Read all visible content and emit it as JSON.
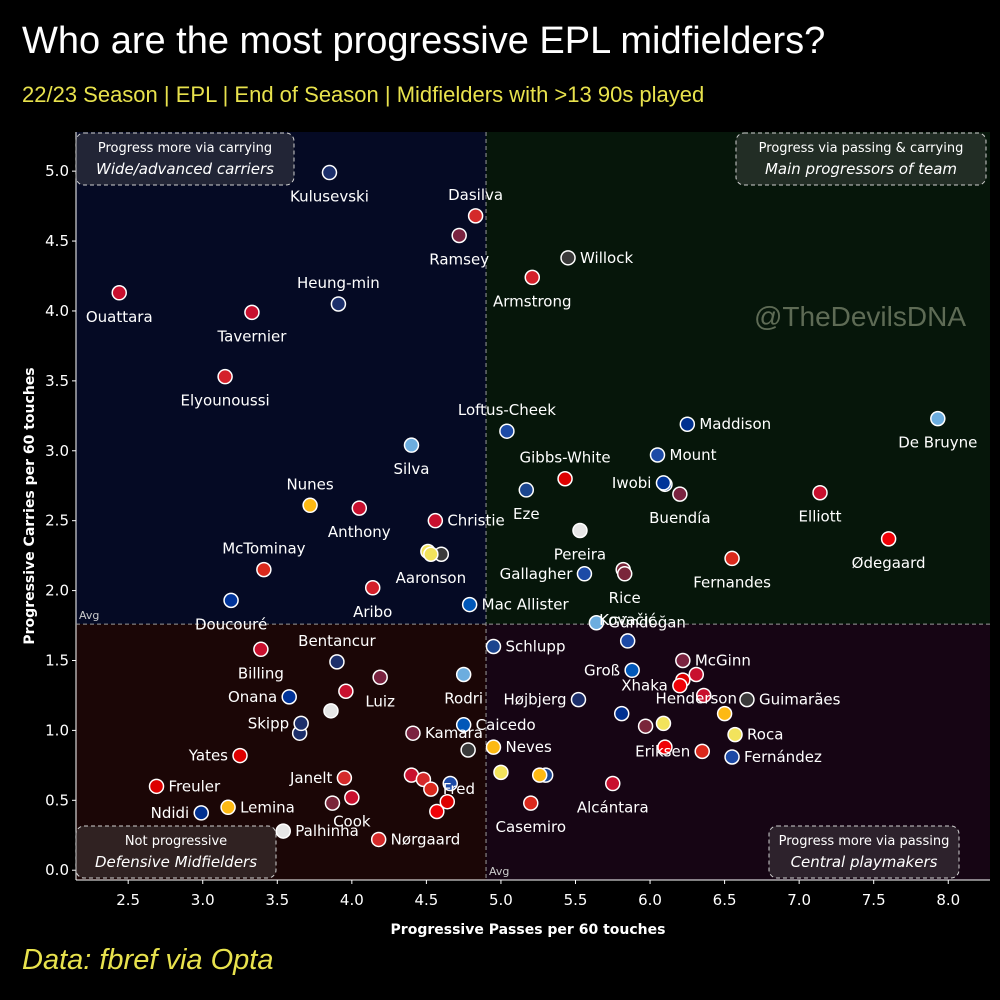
{
  "header": {
    "title": "Who are the most progressive EPL midfielders?",
    "subtitle": "22/23 Season | EPL | End of Season | Midfielders with >13 90s played"
  },
  "footer": {
    "source": "Data: fbref via Opta"
  },
  "watermark": "@TheDevilsDNA",
  "avg_label": "Avg",
  "quadrants": [
    {
      "id": "top-left",
      "title": "Progress more via carrying",
      "subtitle": "Wide/advanced carriers",
      "color": "#050a24"
    },
    {
      "id": "top-right",
      "title": "Progress via passing & carrying",
      "subtitle": "Main progressors of team",
      "color": "#06160a"
    },
    {
      "id": "bottom-left",
      "title": "Not progressive",
      "subtitle": "Defensive Midfielders",
      "color": "#1b0606"
    },
    {
      "id": "bottom-right",
      "title": "Progress more via passing",
      "subtitle": "Central playmakers",
      "color": "#160514"
    }
  ],
  "club_colors": {
    "TOT": "#1c2f6b",
    "BRE": "#d42a2a",
    "AVL": "#7a2340",
    "NEW": "#3a3a3a",
    "SOU": "#d4202a",
    "BOU": "#c8102e",
    "CHE": "#1d4aa6",
    "LIV": "#c8102e",
    "NFO": "#dd0000",
    "MCI": "#6caddf",
    "CRY": "#1b458f",
    "EVE": "#003399",
    "LEI": "#003090",
    "WOL": "#fdb913",
    "ARS": "#ef0107",
    "BHA": "#0057b8",
    "FUL": "#e6e6e6",
    "MUN": "#da291c",
    "WHU": "#7a263a",
    "LEE": "#f2e35c"
  },
  "chart_data": {
    "type": "scatter",
    "title": "Who are the most progressive EPL midfielders?",
    "xlabel": "Progressive Passes per 60 touches",
    "ylabel": "Progressive Carries per 60 touches",
    "xlim": [
      2.15,
      8.28
    ],
    "ylim": [
      -0.07,
      5.28
    ],
    "xticks": [
      2.5,
      3.0,
      3.5,
      4.0,
      4.5,
      5.0,
      5.5,
      6.0,
      6.5,
      7.0,
      7.5,
      8.0
    ],
    "xtick_labels": [
      "2.5",
      "3.0",
      "3.5",
      "4.0",
      "4.5",
      "5.0",
      "5.5",
      "6.0",
      "6.5",
      "7.0",
      "7.5",
      "8.0"
    ],
    "yticks": [
      0.0,
      0.5,
      1.0,
      1.5,
      2.0,
      2.5,
      3.0,
      3.5,
      4.0,
      4.5,
      5.0
    ],
    "ytick_labels": [
      "0.0",
      "0.5",
      "1.0",
      "1.5",
      "2.0",
      "2.5",
      "3.0",
      "3.5",
      "4.0",
      "4.5",
      "5.0"
    ],
    "avg_x": 4.9,
    "avg_y": 1.76,
    "points": [
      {
        "name": "Kulusevski",
        "club": "TOT",
        "x": 3.85,
        "y": 4.99,
        "label_pos": "below"
      },
      {
        "name": "Dasilva",
        "club": "BRE",
        "x": 4.83,
        "y": 4.68,
        "label_pos": "above"
      },
      {
        "name": "Ramsey",
        "club": "AVL",
        "x": 4.72,
        "y": 4.54,
        "label_pos": "below"
      },
      {
        "name": "Willock",
        "club": "NEW",
        "x": 5.45,
        "y": 4.38,
        "label_pos": "right"
      },
      {
        "name": "Armstrong",
        "club": "SOU",
        "x": 5.21,
        "y": 4.24,
        "label_pos": "below"
      },
      {
        "name": "Ouattara",
        "club": "BOU",
        "x": 2.44,
        "y": 4.13,
        "label_pos": "below"
      },
      {
        "name": "Heung-min",
        "club": "TOT",
        "x": 3.91,
        "y": 4.05,
        "label_pos": "above"
      },
      {
        "name": "Tavernier",
        "club": "BOU",
        "x": 3.33,
        "y": 3.99,
        "label_pos": "below"
      },
      {
        "name": "Elyounoussi",
        "club": "SOU",
        "x": 3.15,
        "y": 3.53,
        "label_pos": "below"
      },
      {
        "name": "De Bruyne",
        "club": "MCI",
        "x": 7.93,
        "y": 3.23,
        "label_pos": "below"
      },
      {
        "name": "Loftus-Cheek",
        "club": "CHE",
        "x": 5.04,
        "y": 3.14,
        "label_pos": "above"
      },
      {
        "name": "Maddison",
        "club": "LEI",
        "x": 6.25,
        "y": 3.19,
        "label_pos": "right"
      },
      {
        "name": "Silva",
        "club": "MCI",
        "x": 4.4,
        "y": 3.04,
        "label_pos": "below"
      },
      {
        "name": "Gibbs-White",
        "club": "NFO",
        "x": 5.43,
        "y": 2.8,
        "label_pos": "above"
      },
      {
        "name": "Mount",
        "club": "CHE",
        "x": 6.05,
        "y": 2.97,
        "label_pos": "right"
      },
      {
        "name": "Iwobi",
        "club": "EVE",
        "x": 6.09,
        "y": 2.77,
        "label_pos": "left"
      },
      {
        "name": "Eze",
        "club": "CRY",
        "x": 5.17,
        "y": 2.72,
        "label_pos": "below"
      },
      {
        "name": "Buendía",
        "club": "AVL",
        "x": 6.2,
        "y": 2.69,
        "label_pos": "below"
      },
      {
        "name": "Elliott",
        "club": "LIV",
        "x": 7.14,
        "y": 2.7,
        "label_pos": "below"
      },
      {
        "name": "Nunes",
        "club": "WOL",
        "x": 3.72,
        "y": 2.61,
        "label_pos": "above"
      },
      {
        "name": "Anthony",
        "club": "BOU",
        "x": 4.05,
        "y": 2.59,
        "label_pos": "below"
      },
      {
        "name": "Christie",
        "club": "BOU",
        "x": 4.56,
        "y": 2.5,
        "label_pos": "right"
      },
      {
        "name": "Pereira",
        "club": "FUL",
        "x": 5.53,
        "y": 2.43,
        "label_pos": "below"
      },
      {
        "name": "Ødegaard",
        "club": "ARS",
        "x": 7.6,
        "y": 2.37,
        "label_pos": "below"
      },
      {
        "name": "Aaronson",
        "club": "LEE",
        "x": 4.53,
        "y": 2.26,
        "label_pos": "below"
      },
      {
        "name": "Fernandes",
        "club": "MUN",
        "x": 6.55,
        "y": 2.23,
        "label_pos": "below"
      },
      {
        "name": "Gallagher",
        "club": "CHE",
        "x": 5.56,
        "y": 2.12,
        "label_pos": "left"
      },
      {
        "name": "Rice",
        "club": "WHU",
        "x": 5.83,
        "y": 2.12,
        "label_pos": "below"
      },
      {
        "name": "McTominay",
        "club": "MUN",
        "x": 3.41,
        "y": 2.15,
        "label_pos": "above"
      },
      {
        "name": "Aribo",
        "club": "SOU",
        "x": 4.14,
        "y": 2.02,
        "label_pos": "below"
      },
      {
        "name": "Doucouré",
        "club": "EVE",
        "x": 3.19,
        "y": 1.93,
        "label_pos": "below"
      },
      {
        "name": "Mac Allister",
        "club": "BHA",
        "x": 4.79,
        "y": 1.9,
        "label_pos": "right"
      },
      {
        "name": "Gündoğan",
        "club": "MCI",
        "x": 5.64,
        "y": 1.77,
        "label_pos": "right"
      },
      {
        "name": "Kovačić",
        "club": "CHE",
        "x": 5.85,
        "y": 1.64,
        "label_pos": "above"
      },
      {
        "name": "Bentancur",
        "club": "TOT",
        "x": 3.9,
        "y": 1.49,
        "label_pos": "above"
      },
      {
        "name": "Schlupp",
        "club": "CRY",
        "x": 4.95,
        "y": 1.6,
        "label_pos": "right"
      },
      {
        "name": "McGinn",
        "club": "AVL",
        "x": 6.22,
        "y": 1.5,
        "label_pos": "right"
      },
      {
        "name": "Groß",
        "club": "BHA",
        "x": 5.88,
        "y": 1.43,
        "label_pos": "left"
      },
      {
        "name": "Billing",
        "club": "BOU",
        "x": 3.39,
        "y": 1.58,
        "label_pos": "below"
      },
      {
        "name": "Henderson",
        "club": "LIV",
        "x": 6.31,
        "y": 1.4,
        "label_pos": "below"
      },
      {
        "name": "Rodri",
        "club": "MCI",
        "x": 4.75,
        "y": 1.4,
        "label_pos": "below"
      },
      {
        "name": "Luiz",
        "club": "AVL",
        "x": 4.19,
        "y": 1.38,
        "label_pos": "below"
      },
      {
        "name": "Xhaka",
        "club": "ARS",
        "x": 6.2,
        "y": 1.32,
        "label_pos": "left"
      },
      {
        "name": "Guimarães",
        "club": "NEW",
        "x": 6.65,
        "y": 1.22,
        "label_pos": "right"
      },
      {
        "name": "Onana",
        "club": "EVE",
        "x": 3.58,
        "y": 1.24,
        "label_pos": "left"
      },
      {
        "name": "Højbjerg",
        "club": "TOT",
        "x": 5.52,
        "y": 1.22,
        "label_pos": "left"
      },
      {
        "name": "Skipp",
        "club": "TOT",
        "x": 3.66,
        "y": 1.05,
        "label_pos": "left"
      },
      {
        "name": "Caicedo",
        "club": "BHA",
        "x": 4.75,
        "y": 1.04,
        "label_pos": "right"
      },
      {
        "name": "Kamara",
        "club": "AVL",
        "x": 4.41,
        "y": 0.98,
        "label_pos": "right"
      },
      {
        "name": "Roca",
        "club": "LEE",
        "x": 6.57,
        "y": 0.97,
        "label_pos": "right"
      },
      {
        "name": "Yates",
        "club": "NFO",
        "x": 3.25,
        "y": 0.82,
        "label_pos": "left"
      },
      {
        "name": "Neves",
        "club": "WOL",
        "x": 4.95,
        "y": 0.88,
        "label_pos": "right"
      },
      {
        "name": "Eriksen",
        "club": "MUN",
        "x": 6.35,
        "y": 0.85,
        "label_pos": "left"
      },
      {
        "name": "Fernández",
        "club": "CHE",
        "x": 6.55,
        "y": 0.81,
        "label_pos": "right"
      },
      {
        "name": "Janelt",
        "club": "BRE",
        "x": 3.95,
        "y": 0.66,
        "label_pos": "left"
      },
      {
        "name": "Fred",
        "club": "MUN",
        "x": 4.53,
        "y": 0.58,
        "label_pos": "right"
      },
      {
        "name": "Freuler",
        "club": "NFO",
        "x": 2.69,
        "y": 0.6,
        "label_pos": "right"
      },
      {
        "name": "Alcántara",
        "club": "LIV",
        "x": 5.75,
        "y": 0.62,
        "label_pos": "below"
      },
      {
        "name": "Ndidi",
        "club": "LEI",
        "x": 2.99,
        "y": 0.41,
        "label_pos": "left"
      },
      {
        "name": "Lemina",
        "club": "WOL",
        "x": 3.17,
        "y": 0.45,
        "label_pos": "right"
      },
      {
        "name": "Cook",
        "club": "BOU",
        "x": 4.0,
        "y": 0.52,
        "label_pos": "below"
      },
      {
        "name": "Casemiro",
        "club": "MUN",
        "x": 5.2,
        "y": 0.48,
        "label_pos": "below"
      },
      {
        "name": "Palhinha",
        "club": "FUL",
        "x": 3.54,
        "y": 0.28,
        "label_pos": "right"
      },
      {
        "name": "Nørgaard",
        "club": "BRE",
        "x": 4.18,
        "y": 0.22,
        "label_pos": "right"
      }
    ],
    "extra_markers": [
      {
        "club": "WHU",
        "x": 3.87,
        "y": 0.48
      },
      {
        "club": "FUL",
        "x": 3.86,
        "y": 1.14
      },
      {
        "club": "BOU",
        "x": 3.96,
        "y": 1.28
      },
      {
        "club": "TOT",
        "x": 3.65,
        "y": 0.98
      },
      {
        "club": "LEE",
        "x": 4.51,
        "y": 2.28
      },
      {
        "club": "NEW",
        "x": 4.6,
        "y": 2.26
      },
      {
        "club": "BOU",
        "x": 4.4,
        "y": 0.68
      },
      {
        "club": "BRE",
        "x": 4.48,
        "y": 0.65
      },
      {
        "club": "NEW",
        "x": 4.78,
        "y": 0.86
      },
      {
        "club": "ARS",
        "x": 4.57,
        "y": 0.42
      },
      {
        "club": "NFO",
        "x": 4.64,
        "y": 0.49
      },
      {
        "club": "CHE",
        "x": 4.66,
        "y": 0.62
      },
      {
        "club": "CRY",
        "x": 5.3,
        "y": 0.68
      },
      {
        "club": "WOL",
        "x": 5.26,
        "y": 0.68
      },
      {
        "club": "LEE",
        "x": 5.0,
        "y": 0.7
      },
      {
        "club": "WHU",
        "x": 5.97,
        "y": 1.03
      },
      {
        "club": "LEE",
        "x": 6.09,
        "y": 1.05
      },
      {
        "club": "LIV",
        "x": 6.36,
        "y": 1.25
      },
      {
        "club": "ARS",
        "x": 6.1,
        "y": 0.88
      },
      {
        "club": "NFO",
        "x": 6.22,
        "y": 1.36
      },
      {
        "club": "WOL",
        "x": 6.5,
        "y": 1.12
      },
      {
        "club": "LEI",
        "x": 5.81,
        "y": 1.12
      },
      {
        "club": "WHU",
        "x": 5.82,
        "y": 2.15
      },
      {
        "club": "EVE",
        "x": 6.1,
        "y": 2.76
      }
    ]
  }
}
